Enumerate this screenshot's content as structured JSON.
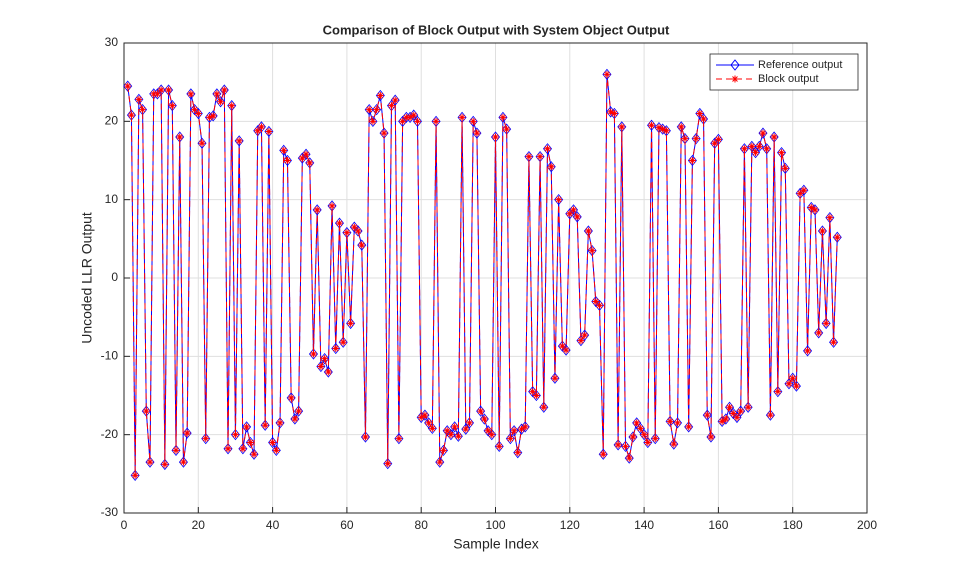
{
  "chart_data": {
    "type": "line",
    "title": "Comparison of Block Output with System Object Output",
    "xlabel": "Sample Index",
    "ylabel": "Uncoded LLR Output",
    "xlim": [
      0,
      200
    ],
    "xticks": [
      0,
      20,
      40,
      60,
      80,
      100,
      120,
      140,
      160,
      180,
      200
    ],
    "ylim": [
      -30,
      30
    ],
    "yticks": [
      -30,
      -20,
      -10,
      0,
      10,
      20,
      30
    ],
    "grid": true,
    "legend": "northeast",
    "x": [
      1,
      2,
      3,
      4,
      5,
      6,
      7,
      8,
      9,
      10,
      11,
      12,
      13,
      14,
      15,
      16,
      17,
      18,
      19,
      20,
      21,
      22,
      23,
      24,
      25,
      26,
      27,
      28,
      29,
      30,
      31,
      32,
      33,
      34,
      35,
      36,
      37,
      38,
      39,
      40,
      41,
      42,
      43,
      44,
      45,
      46,
      47,
      48,
      49,
      50,
      51,
      52,
      53,
      54,
      55,
      56,
      57,
      58,
      59,
      60,
      61,
      62,
      63,
      64,
      65,
      66,
      67,
      68,
      69,
      70,
      71,
      72,
      73,
      74,
      75,
      76,
      77,
      78,
      79,
      80,
      81,
      82,
      83,
      84,
      85,
      86,
      87,
      88,
      89,
      90,
      91,
      92,
      93,
      94,
      95,
      96,
      97,
      98,
      99,
      100,
      101,
      102,
      103,
      104,
      105,
      106,
      107,
      108,
      109,
      110,
      111,
      112,
      113,
      114,
      115,
      116,
      117,
      118,
      119,
      120,
      121,
      122,
      123,
      124,
      125,
      126,
      127,
      128,
      129,
      130,
      131,
      132,
      133,
      134,
      135,
      136,
      137,
      138,
      139,
      140,
      141,
      142,
      143,
      144,
      145,
      146,
      147,
      148,
      149,
      150,
      151,
      152,
      153,
      154,
      155,
      156,
      157,
      158,
      159,
      160,
      161,
      162,
      163,
      164,
      165,
      166,
      167,
      168,
      169,
      170,
      171,
      172,
      173,
      174,
      175,
      176,
      177,
      178,
      179,
      180,
      181,
      182,
      183,
      184,
      185,
      186,
      187,
      188,
      189,
      190,
      191,
      192
    ],
    "series": [
      {
        "name": "Reference output",
        "color": "#0000ff",
        "marker": "diamond",
        "dash": "solid",
        "values": [
          24.5,
          20.8,
          -25.2,
          22.8,
          21.5,
          -17,
          -23.5,
          23.5,
          23.5,
          24,
          -23.8,
          24,
          22,
          -22,
          18,
          -23.5,
          -19.8,
          23.5,
          21.5,
          21,
          17.2,
          -20.5,
          20.5,
          20.7,
          23.5,
          22.5,
          24,
          -21.8,
          22,
          -20,
          17.5,
          -21.8,
          -19,
          -21,
          -22.5,
          18.8,
          19.3,
          -18.8,
          18.7,
          -21,
          -22,
          -18.5,
          16.3,
          15,
          -15.3,
          -18,
          -17,
          15.3,
          15.8,
          14.7,
          -9.7,
          8.7,
          -11.3,
          -10.3,
          -12,
          9.2,
          -9,
          7,
          -8.2,
          5.8,
          -5.8,
          6.5,
          6,
          4.2,
          -20.3,
          21.5,
          20,
          21.5,
          23.3,
          18.5,
          -23.7,
          22,
          22.7,
          -20.5,
          20,
          20.5,
          20.5,
          20.8,
          20,
          -17.8,
          -17.5,
          -18.5,
          -19.2,
          20,
          -23.5,
          -22,
          -19.5,
          -20,
          -19,
          -20.2,
          20.5,
          -19.3,
          -18.5,
          20,
          18.5,
          -17,
          -18,
          -19.5,
          -20,
          18,
          -21.5,
          20.5,
          19,
          -20.5,
          -19.5,
          -22.3,
          -19.3,
          -19,
          15.5,
          -14.5,
          -15,
          15.5,
          -16.5,
          16.5,
          14.2,
          -12.8,
          10,
          -8.7,
          -9.2,
          8.2,
          8.7,
          7.8,
          -8,
          -7.3,
          6,
          3.5,
          -3,
          -3.5,
          -22.5,
          26,
          21.2,
          21,
          -21.3,
          19.3,
          -21.5,
          -23,
          -20.3,
          -18.5,
          -19.2,
          -20,
          -21,
          19.5,
          -20.5,
          19.2,
          19,
          18.8,
          -18.3,
          -21.2,
          -18.5,
          19.3,
          17.8,
          -19,
          15,
          17.8,
          21,
          20.3,
          -17.5,
          -20.3,
          17.2,
          17.7,
          -18.3,
          -18,
          -16.5,
          -17.3,
          -17.8,
          -17,
          16.5,
          -16.5,
          16.8,
          16,
          16.8,
          18.5,
          16.5,
          -17.5,
          18,
          -14.5,
          16,
          14,
          -13.5,
          -12.8,
          -13.8,
          10.8,
          11.2,
          -9.3,
          9,
          8.7,
          -7,
          6,
          -5.8,
          7.7,
          -8.2,
          5.2
        ]
      },
      {
        "name": "Block output",
        "color": "#ff0000",
        "marker": "asterisk",
        "dash": "dashed",
        "values": [
          24.5,
          20.8,
          -25.2,
          22.8,
          21.5,
          -17,
          -23.5,
          23.5,
          23.5,
          24,
          -23.8,
          24,
          22,
          -22,
          18,
          -23.5,
          -19.8,
          23.5,
          21.5,
          21,
          17.2,
          -20.5,
          20.5,
          20.7,
          23.5,
          22.5,
          24,
          -21.8,
          22,
          -20,
          17.5,
          -21.8,
          -19,
          -21,
          -22.5,
          18.8,
          19.3,
          -18.8,
          18.7,
          -21,
          -22,
          -18.5,
          16.3,
          15,
          -15.3,
          -18,
          -17,
          15.3,
          15.8,
          14.7,
          -9.7,
          8.7,
          -11.3,
          -10.3,
          -12,
          9.2,
          -9,
          7,
          -8.2,
          5.8,
          -5.8,
          6.5,
          6,
          4.2,
          -20.3,
          21.5,
          20,
          21.5,
          23.3,
          18.5,
          -23.7,
          22,
          22.7,
          -20.5,
          20,
          20.5,
          20.5,
          20.8,
          20,
          -17.8,
          -17.5,
          -18.5,
          -19.2,
          20,
          -23.5,
          -22,
          -19.5,
          -20,
          -19,
          -20.2,
          20.5,
          -19.3,
          -18.5,
          20,
          18.5,
          -17,
          -18,
          -19.5,
          -20,
          18,
          -21.5,
          20.5,
          19,
          -20.5,
          -19.5,
          -22.3,
          -19.3,
          -19,
          15.5,
          -14.5,
          -15,
          15.5,
          -16.5,
          16.5,
          14.2,
          -12.8,
          10,
          -8.7,
          -9.2,
          8.2,
          8.7,
          7.8,
          -8,
          -7.3,
          6,
          3.5,
          -3,
          -3.5,
          -22.5,
          26,
          21.2,
          21,
          -21.3,
          19.3,
          -21.5,
          -23,
          -20.3,
          -18.5,
          -19.2,
          -20,
          -21,
          19.5,
          -20.5,
          19.2,
          19,
          18.8,
          -18.3,
          -21.2,
          -18.5,
          19.3,
          17.8,
          -19,
          15,
          17.8,
          21,
          20.3,
          -17.5,
          -20.3,
          17.2,
          17.7,
          -18.3,
          -18,
          -16.5,
          -17.3,
          -17.8,
          -17,
          16.5,
          -16.5,
          16.8,
          16,
          16.8,
          18.5,
          16.5,
          -17.5,
          18,
          -14.5,
          16,
          14,
          -13.5,
          -12.8,
          -13.8,
          10.8,
          11.2,
          -9.3,
          9,
          8.7,
          -7,
          6,
          -5.8,
          7.7,
          -8.2,
          5.2
        ]
      }
    ]
  }
}
